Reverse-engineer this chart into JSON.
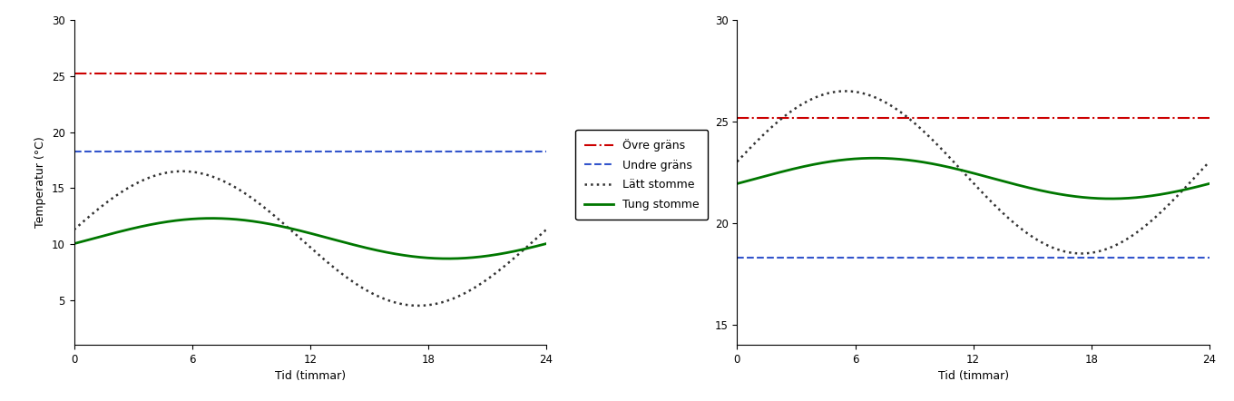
{
  "xlabel": "Tid (timmar)",
  "ylabel": "Temperatur (°C)",
  "ovre_grans_val": 25.2,
  "undre_grans_val": 18.3,
  "ovre_color": "#cc0000",
  "undre_color": "#3355cc",
  "latt_color": "#333333",
  "tung_color": "#007700",
  "legend_labels": [
    "Övre gräns",
    "Undre gräns",
    "Lätt stomme",
    "Tung stomme"
  ],
  "ylim_left": [
    1,
    30
  ],
  "ylim_right": [
    14,
    30
  ],
  "yticks_left": [
    5,
    10,
    15,
    20,
    25,
    30
  ],
  "yticks_right": [
    15,
    20,
    25,
    30
  ],
  "xticks": [
    0,
    6,
    12,
    18,
    24
  ],
  "winter_latt_mean": 10.5,
  "winter_latt_amplitude": 6.0,
  "winter_latt_peak": 5.5,
  "winter_tung_mean": 10.5,
  "winter_tung_amplitude": 1.8,
  "winter_tung_peak": 7.0,
  "summer_latt_mean": 22.5,
  "summer_latt_amplitude": 4.0,
  "summer_latt_peak": 5.5,
  "summer_tung_mean": 22.2,
  "summer_tung_amplitude": 1.0,
  "summer_tung_peak": 7.0
}
